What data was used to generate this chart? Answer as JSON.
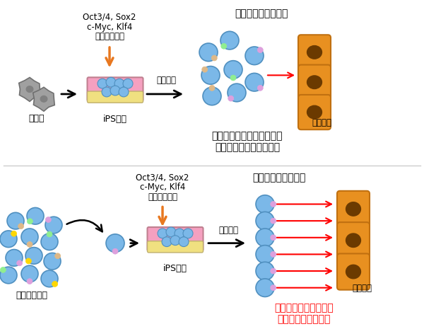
{
  "title": "",
  "bg_color": "#ffffff",
  "top_label1": "Oct3/4, Sox2",
  "top_label2": "c-Myc, Klf4",
  "top_label3": "（山中因子）",
  "label_somatic": "体細胞",
  "label_ips1": "iPS細胞",
  "label_ips2": "iPS細胞",
  "label_diff1": "分化誘導",
  "label_diff2": "分化誘導",
  "label_diverse": "「多様な」リンパ球",
  "label_desired": "「欲しい」リンパ球",
  "label_cancer1": "がん細胞",
  "label_cancer2": "がん細胞",
  "label_mature": "成熟リンパ球",
  "label_few": "ごく一部のリンパ球しか、\nがん細胞を攻撃できない",
  "label_all": "すべてのリンパ球が、\nがん細胞を攻撃する",
  "arrow_color_orange": "#E87820",
  "arrow_color_black": "#000000",
  "arrow_color_red": "#FF0000",
  "lymph_blue": "#7BB8E8",
  "lymph_outline": "#5090C0",
  "cancer_orange": "#E89020",
  "cancer_dark": "#6B3A00",
  "ips_pink": "#F5A0C0",
  "ips_yellow": "#F0E080",
  "somatic_gray": "#A0A0A0"
}
